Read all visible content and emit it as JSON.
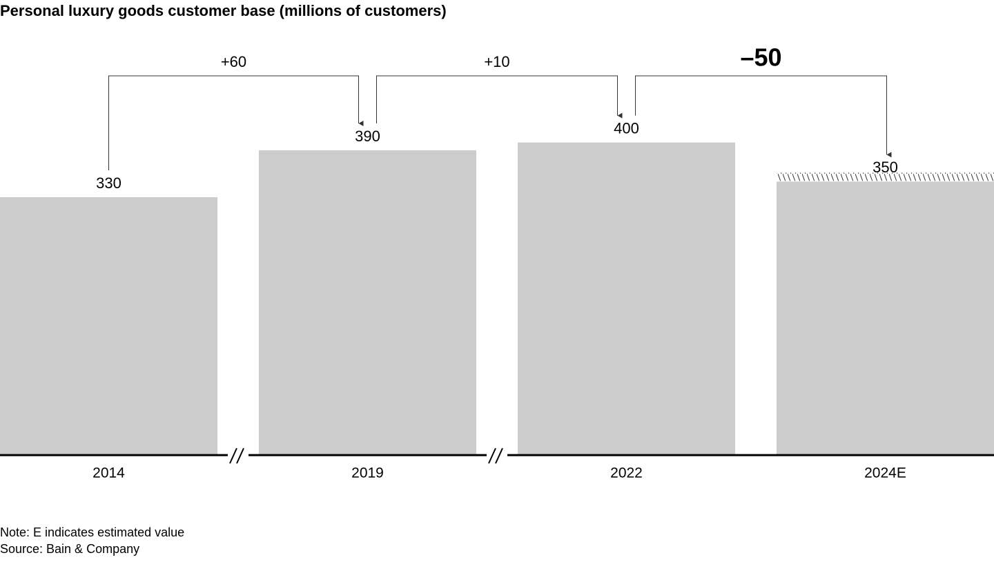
{
  "chart_data": {
    "type": "bar",
    "title": "Personal luxury goods customer base (millions of customers)",
    "categories": [
      "2014",
      "2019",
      "2022",
      "2024E"
    ],
    "values": [
      330,
      390,
      400,
      350
    ],
    "color": "#cccccc",
    "ylim": [
      0,
      500
    ],
    "annotations": [
      "+60",
      "+10",
      "–50"
    ],
    "note": "Note: E indicates estimated value",
    "source": "Source: Bain & Company"
  }
}
